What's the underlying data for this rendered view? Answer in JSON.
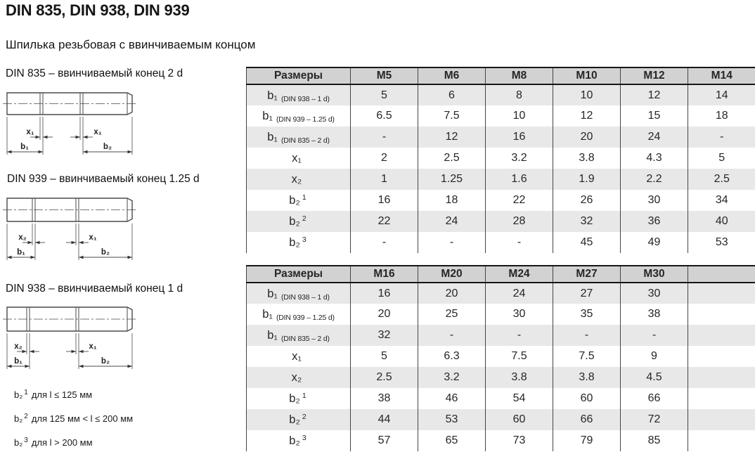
{
  "page": {
    "title": "DIN 835, DIN 938, DIN 939",
    "subtitle": "Шпилька резьбовая с ввинчиваемым концом"
  },
  "drawings": [
    {
      "caption": "DIN 835 – ввинчиваемый конец 2 d",
      "dim_x_left": "x₁",
      "dim_x_right": "x₁",
      "dim_b_left": "b₁",
      "dim_b_right": "b₂"
    },
    {
      "caption": "DIN 939 – ввинчиваемый конец 1.25 d",
      "dim_x_left": "x₂",
      "dim_x_right": "x₁",
      "dim_b_left": "b₁",
      "dim_b_right": "b₂"
    },
    {
      "caption": "DIN 938 – ввинчиваемый конец 1 d",
      "dim_x_left": "x₂",
      "dim_x_right": "x₁",
      "dim_b_left": "b₁",
      "dim_b_right": "b₂"
    }
  ],
  "footnotes": [
    {
      "label": "b₂",
      "sup": "1",
      "text": "для l ≤ 125 мм"
    },
    {
      "label": "b₂",
      "sup": "2",
      "text": "для 125 мм < l ≤ 200 мм"
    },
    {
      "label": "b₂",
      "sup": "3",
      "text": "для l > 200 мм"
    }
  ],
  "tables": [
    {
      "header": [
        "Размеры",
        "M5",
        "M6",
        "M8",
        "M10",
        "M12",
        "M14"
      ],
      "rows": [
        {
          "label": "b₁",
          "sup": "",
          "note": "(DIN 938 – 1 d)",
          "values": [
            "5",
            "6",
            "8",
            "10",
            "12",
            "14"
          ]
        },
        {
          "label": "b₁",
          "sup": "",
          "note": "(DIN 939 – 1.25 d)",
          "values": [
            "6.5",
            "7.5",
            "10",
            "12",
            "15",
            "18"
          ]
        },
        {
          "label": "b₁",
          "sup": "",
          "note": "(DIN 835 – 2 d)",
          "values": [
            "-",
            "12",
            "16",
            "20",
            "24",
            "-"
          ]
        },
        {
          "label": "x₁",
          "sup": "",
          "note": "",
          "values": [
            "2",
            "2.5",
            "3.2",
            "3.8",
            "4.3",
            "5"
          ]
        },
        {
          "label": "x₂",
          "sup": "",
          "note": "",
          "values": [
            "1",
            "1.25",
            "1.6",
            "1.9",
            "2.2",
            "2.5"
          ]
        },
        {
          "label": "b₂",
          "sup": "1",
          "note": "",
          "values": [
            "16",
            "18",
            "22",
            "26",
            "30",
            "34"
          ]
        },
        {
          "label": "b₂",
          "sup": "2",
          "note": "",
          "values": [
            "22",
            "24",
            "28",
            "32",
            "36",
            "40"
          ]
        },
        {
          "label": "b₂",
          "sup": "3",
          "note": "",
          "values": [
            "-",
            "-",
            "-",
            "45",
            "49",
            "53"
          ]
        }
      ]
    },
    {
      "header": [
        "Размеры",
        "M16",
        "M20",
        "M24",
        "M27",
        "M30",
        ""
      ],
      "rows": [
        {
          "label": "b₁",
          "sup": "",
          "note": "(DIN 938 – 1 d)",
          "values": [
            "16",
            "20",
            "24",
            "27",
            "30",
            ""
          ]
        },
        {
          "label": "b₁",
          "sup": "",
          "note": "(DIN 939 – 1.25 d)",
          "values": [
            "20",
            "25",
            "30",
            "35",
            "38",
            ""
          ]
        },
        {
          "label": "b₁",
          "sup": "",
          "note": "(DIN 835 – 2 d)",
          "values": [
            "32",
            "-",
            "-",
            "-",
            "-",
            ""
          ]
        },
        {
          "label": "x₁",
          "sup": "",
          "note": "",
          "values": [
            "5",
            "6.3",
            "7.5",
            "7.5",
            "9",
            ""
          ]
        },
        {
          "label": "x₂",
          "sup": "",
          "note": "",
          "values": [
            "2.5",
            "3.2",
            "3.8",
            "3.8",
            "4.5",
            ""
          ]
        },
        {
          "label": "b₂",
          "sup": "1",
          "note": "",
          "values": [
            "38",
            "46",
            "54",
            "60",
            "66",
            ""
          ]
        },
        {
          "label": "b₂",
          "sup": "2",
          "note": "",
          "values": [
            "44",
            "53",
            "60",
            "66",
            "72",
            ""
          ]
        },
        {
          "label": "b₂",
          "sup": "3",
          "note": "",
          "values": [
            "57",
            "65",
            "73",
            "79",
            "85",
            ""
          ]
        }
      ]
    }
  ]
}
